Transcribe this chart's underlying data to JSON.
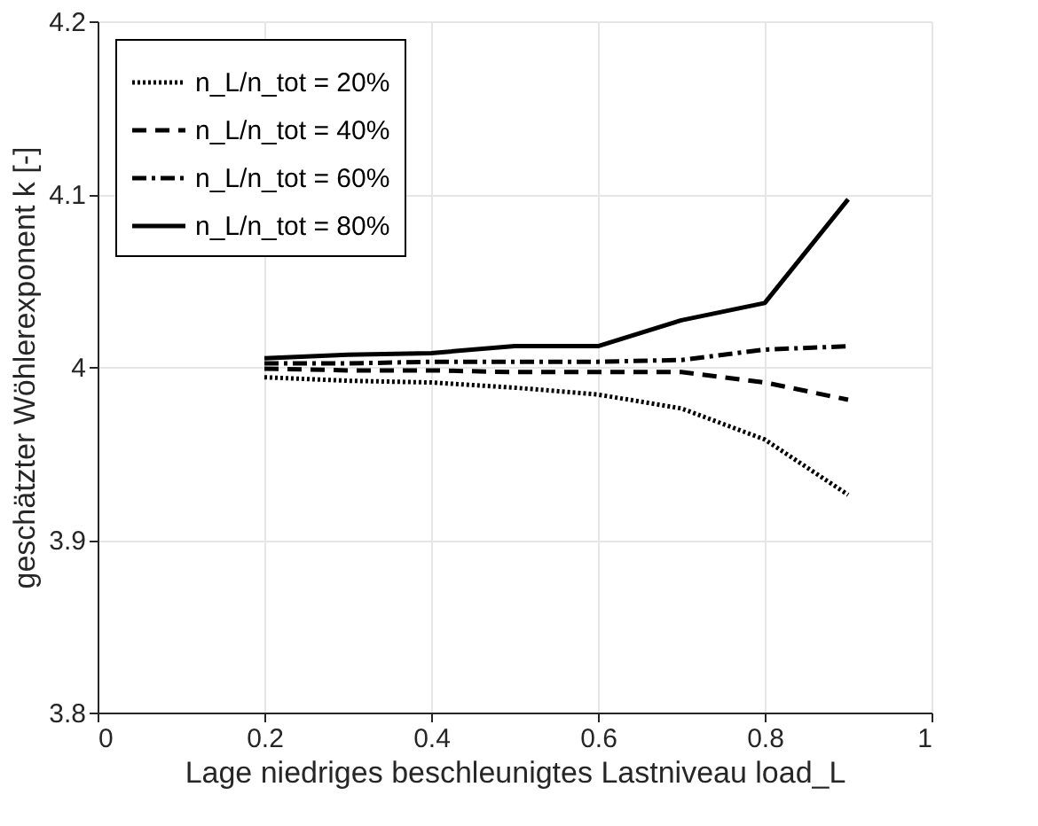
{
  "chart_data": {
    "type": "line",
    "xlabel": "Lage niedriges beschleunigtes Lastniveau load_L",
    "ylabel": "geschätzter Wöhlerexponent k [-]",
    "x": [
      0.2,
      0.3,
      0.4,
      0.5,
      0.6,
      0.7,
      0.8,
      0.9
    ],
    "series": [
      {
        "name": "n_L/n_tot = 20%",
        "color": "#000000",
        "line_style": "dotted",
        "values": [
          3.994,
          3.992,
          3.991,
          3.988,
          3.984,
          3.976,
          3.958,
          3.926
        ]
      },
      {
        "name": "n_L/n_tot = 40%",
        "color": "#000000",
        "line_style": "dashed",
        "values": [
          3.999,
          3.998,
          3.998,
          3.997,
          3.997,
          3.997,
          3.991,
          3.981
        ]
      },
      {
        "name": "n_L/n_tot = 60%",
        "color": "#000000",
        "line_style": "dashdot",
        "values": [
          4.002,
          4.002,
          4.003,
          4.003,
          4.003,
          4.004,
          4.01,
          4.012
        ]
      },
      {
        "name": "n_L/n_tot = 80%",
        "color": "#000000",
        "line_style": "solid",
        "values": [
          4.005,
          4.007,
          4.008,
          4.012,
          4.012,
          4.027,
          4.037,
          4.097
        ]
      }
    ],
    "xlim": [
      0,
      1
    ],
    "xticks": [
      0,
      0.2,
      0.4,
      0.6,
      0.8,
      1
    ],
    "ylim": [
      3.8,
      4.2
    ],
    "yticks": [
      3.8,
      3.9,
      4,
      4.1,
      4.2
    ],
    "grid": true,
    "legend": "top left",
    "marker": "none"
  }
}
